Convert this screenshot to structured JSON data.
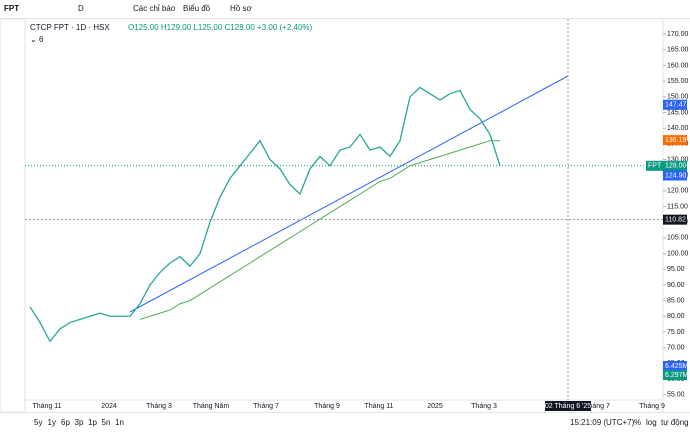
{
  "toolbar": {
    "symbol": "FPT",
    "interval": "D",
    "indicators": "Các chỉ báo",
    "chart_type": "Biểu đồ",
    "profile": "Hồ sơ"
  },
  "legend": {
    "title": "CTCP FPT · 1D · HSX",
    "open": "O125.00",
    "high": "H129.00",
    "low": "L125.00",
    "close": "C128.00",
    "change": "+3.00 (+2,40%)",
    "indicator_count": "6"
  },
  "chart_data": {
    "type": "line",
    "series": [
      {
        "color": "#26a69a",
        "values": [
          83,
          78,
          72,
          76,
          78,
          79,
          80,
          81,
          80,
          80,
          80,
          84,
          90,
          94,
          97,
          99,
          96,
          100,
          110,
          118,
          124,
          128,
          132,
          136,
          130,
          127,
          122,
          119,
          127,
          131,
          128,
          133,
          134,
          138,
          133,
          134,
          131,
          136,
          150,
          153,
          151,
          149,
          151,
          152,
          146,
          143,
          138,
          128
        ]
      },
      {
        "color": "#4caf50",
        "values": [
          null,
          null,
          null,
          null,
          null,
          null,
          null,
          null,
          null,
          null,
          null,
          79,
          80,
          81,
          82,
          84,
          85,
          87,
          89,
          91,
          93,
          95,
          97,
          99,
          101,
          103,
          105,
          107,
          109,
          111,
          113,
          115,
          117,
          119,
          121,
          123,
          124,
          126,
          128,
          129,
          130,
          131,
          132,
          133,
          134,
          135,
          136,
          136
        ]
      }
    ],
    "ylim": [
      53.3,
      174.5
    ],
    "yticks": [
      {
        "value": 170,
        "label": "170.00"
      },
      {
        "value": 165,
        "label": "165.00"
      },
      {
        "value": 160,
        "label": "160.00"
      },
      {
        "value": 155,
        "label": "155.00"
      },
      {
        "value": 150,
        "label": "150.00"
      },
      {
        "value": 145,
        "label": "145.00"
      },
      {
        "value": 140,
        "label": "140.00"
      },
      {
        "value": 135,
        "label": "135.00"
      },
      {
        "value": 130,
        "label": "130.00"
      },
      {
        "value": 125,
        "label": "125.00"
      },
      {
        "value": 120,
        "label": "120.00"
      },
      {
        "value": 115,
        "label": "115.00"
      },
      {
        "value": 110,
        "label": "110.00"
      },
      {
        "value": 105,
        "label": "105.00"
      },
      {
        "value": 100,
        "label": "100.00"
      },
      {
        "value": 95,
        "label": "95.00"
      },
      {
        "value": 90,
        "label": "90.00"
      },
      {
        "value": 85,
        "label": "85.00"
      },
      {
        "value": 80,
        "label": "80.00"
      },
      {
        "value": 75,
        "label": "75.00"
      },
      {
        "value": 70,
        "label": "70.00"
      },
      {
        "value": 65,
        "label": "65.00"
      },
      {
        "value": 60,
        "label": "60.00"
      },
      {
        "value": 55,
        "label": "55.00"
      }
    ],
    "price_labels": [
      {
        "value": 147.47,
        "label": "147.47",
        "color": "#2962ff"
      },
      {
        "value": 136.19,
        "label": "136.19",
        "color": "#ff6d00"
      },
      {
        "value": 128,
        "label": "128.00",
        "color": "#089981"
      },
      {
        "value": 124.9,
        "label": "124.90",
        "color": "#2962ff"
      },
      {
        "value": 110.82,
        "label": "110.82",
        "color": "#131722"
      }
    ],
    "price_label_name": "FPT",
    "volume_labels": [
      {
        "label": "6.425M",
        "color": "#2962ff"
      },
      {
        "label": "6.297M",
        "color": "#089981"
      }
    ],
    "x_labels": [
      "Tháng 11",
      "2024",
      "Tháng 3",
      "Tháng Năm",
      "Tháng 7",
      "Tháng 9",
      "Tháng 11",
      "2025",
      "Tháng 3",
      "Tháng 7",
      "Tháng 9"
    ],
    "crosshair_date": "02 Tháng 6 '25"
  },
  "footer": {
    "ranges": [
      "5y",
      "1y",
      "6p",
      "3p",
      "1p",
      "5n",
      "1n"
    ],
    "clock": "15:21:09 (UTC+7)",
    "percent": "%",
    "log": "log",
    "auto": "tự động"
  }
}
